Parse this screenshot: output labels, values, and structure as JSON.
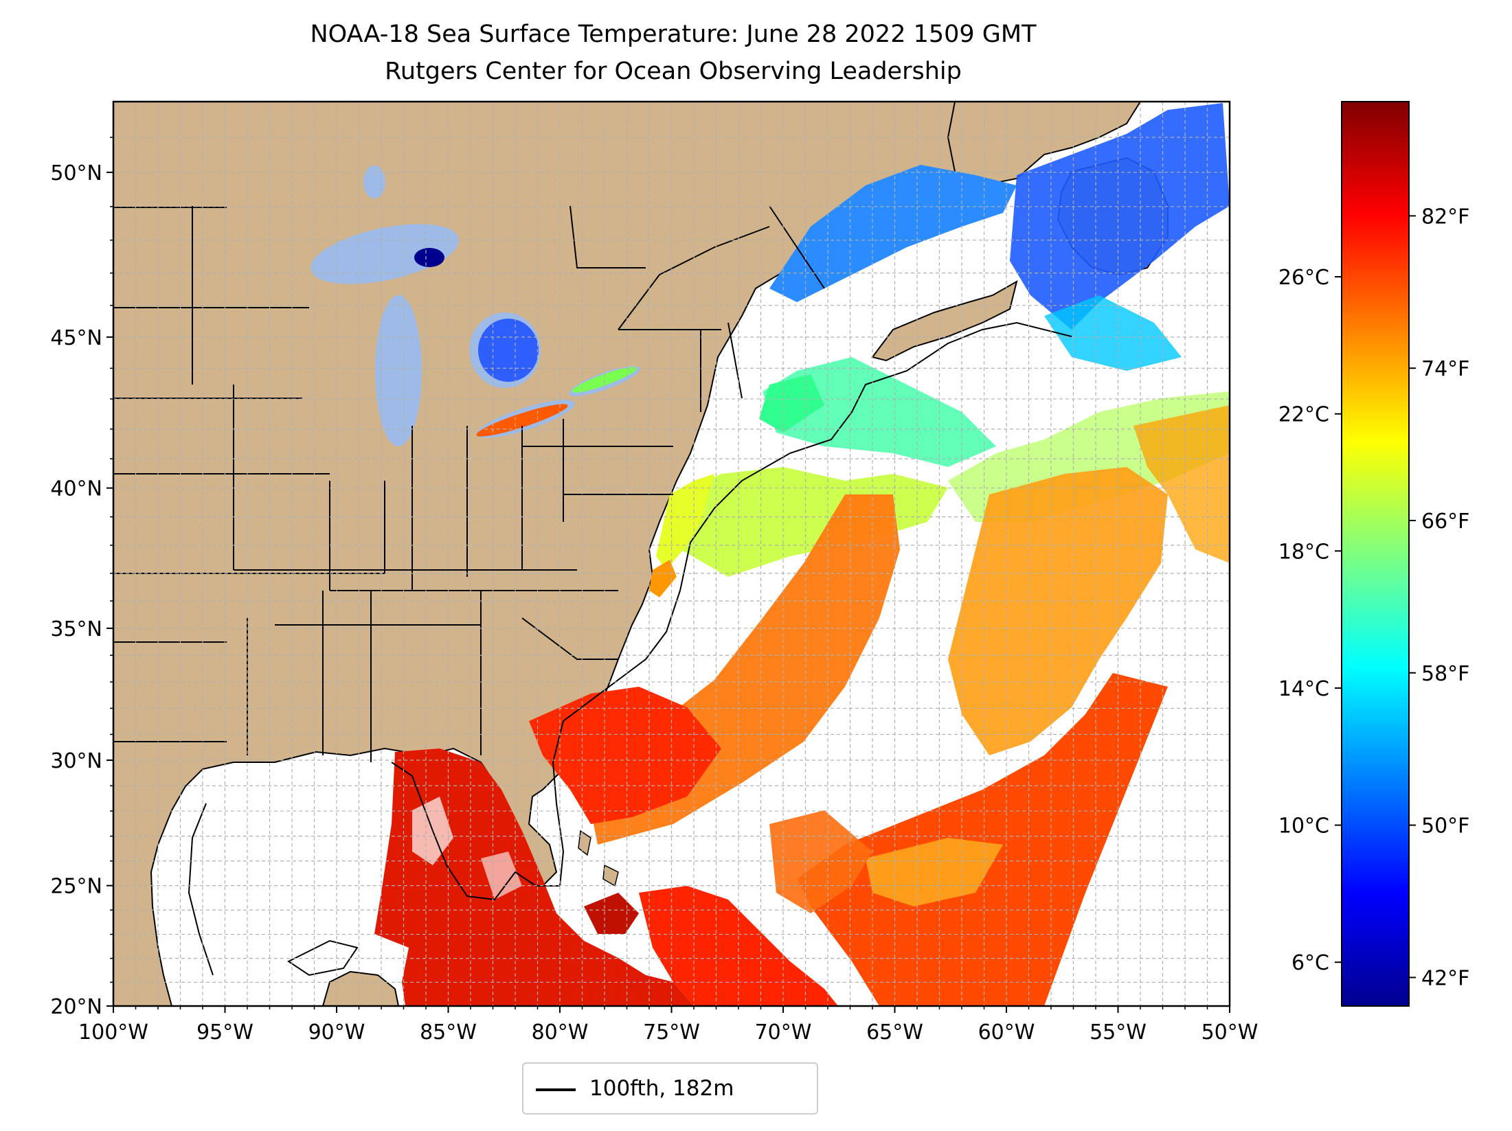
{
  "title": {
    "line1": "NOAA-18 Sea Surface Temperature: June 28 2022 1509 GMT",
    "line2": "Rutgers Center for Ocean Observing Leadership"
  },
  "colors": {
    "land": "#d2b48c",
    "lakes": "#9ebbe8",
    "border": "#000000",
    "grid": "#b0b0b0"
  },
  "chart_data": {
    "type": "heatmap",
    "map_extent": {
      "lon": [
        -100,
        -50
      ],
      "lat": [
        20,
        52
      ]
    },
    "x_ticks": [
      {
        "lon": -100,
        "label": "100°W"
      },
      {
        "lon": -95,
        "label": "95°W"
      },
      {
        "lon": -90,
        "label": "90°W"
      },
      {
        "lon": -85,
        "label": "85°W"
      },
      {
        "lon": -80,
        "label": "80°W"
      },
      {
        "lon": -75,
        "label": "75°W"
      },
      {
        "lon": -70,
        "label": "70°W"
      },
      {
        "lon": -65,
        "label": "65°W"
      },
      {
        "lon": -60,
        "label": "60°W"
      },
      {
        "lon": -55,
        "label": "55°W"
      },
      {
        "lon": -50,
        "label": "50°W"
      }
    ],
    "y_ticks": [
      {
        "lat": 20,
        "label": "20°N"
      },
      {
        "lat": 25,
        "label": "25°N"
      },
      {
        "lat": 30,
        "label": "30°N"
      },
      {
        "lat": 35,
        "label": "35°N"
      },
      {
        "lat": 40,
        "label": "40°N"
      },
      {
        "lat": 45,
        "label": "45°N"
      },
      {
        "lat": 50,
        "label": "50°N"
      }
    ],
    "colorbar": {
      "colormap": "jet",
      "range_f": [
        40.5,
        88
      ],
      "celsius_ticks": [
        {
          "value": 6,
          "label": "6°C"
        },
        {
          "value": 10,
          "label": "10°C"
        },
        {
          "value": 14,
          "label": "14°C"
        },
        {
          "value": 18,
          "label": "18°C"
        },
        {
          "value": 22,
          "label": "22°C"
        },
        {
          "value": 26,
          "label": "26°C"
        }
      ],
      "fahrenheit_ticks": [
        {
          "value": 42,
          "label": "42°F"
        },
        {
          "value": 50,
          "label": "50°F"
        },
        {
          "value": 58,
          "label": "58°F"
        },
        {
          "value": 66,
          "label": "66°F"
        },
        {
          "value": 74,
          "label": "74°F"
        },
        {
          "value": 82,
          "label": "82°F"
        }
      ]
    },
    "legend": {
      "entries": [
        {
          "label": "100fth, 182m",
          "color": "#000000",
          "style": "solid line"
        }
      ],
      "placement": "bottom-center"
    },
    "grid": true
  }
}
